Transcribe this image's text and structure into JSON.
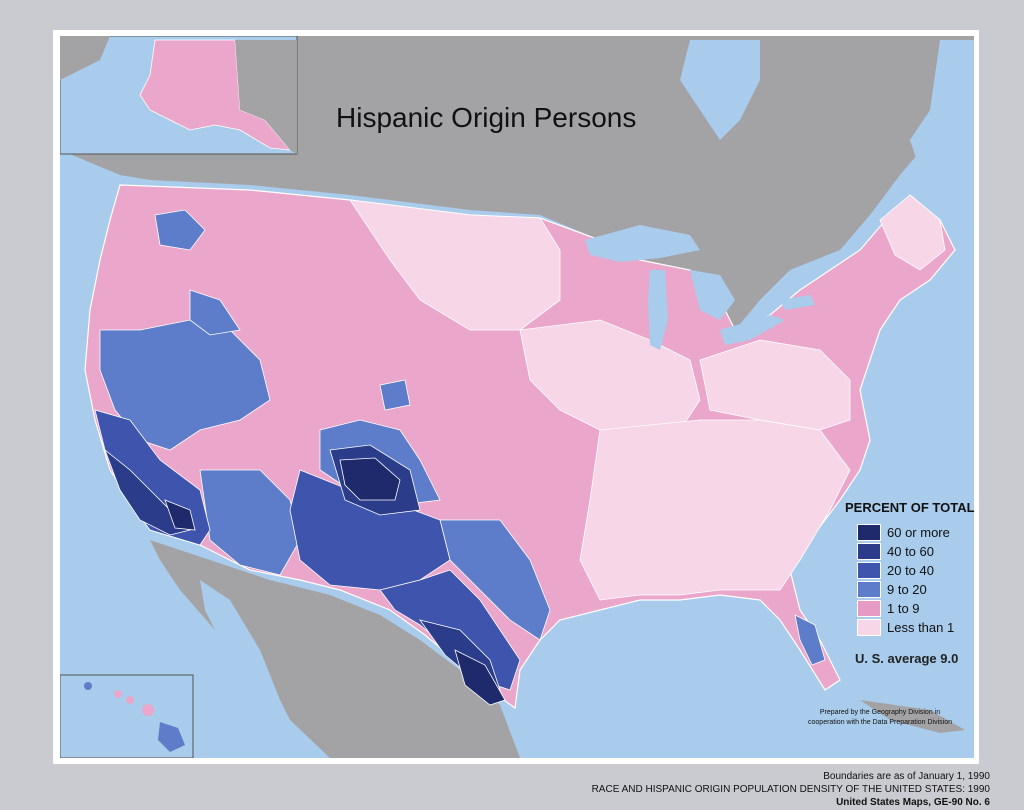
{
  "title": "Hispanic Origin Persons",
  "legend": {
    "title": "PERCENT OF TOTAL",
    "items": [
      {
        "label": "60 or more",
        "color": "#1e2a6b"
      },
      {
        "label": "40 to 60",
        "color": "#2a3c8a"
      },
      {
        "label": "20 to 40",
        "color": "#3f55ad"
      },
      {
        "label": "9 to 20",
        "color": "#5d7cc9"
      },
      {
        "label": "1 to 9",
        "color": "#e79bc4"
      },
      {
        "label": "Less than 1",
        "color": "#f7d6e8"
      }
    ]
  },
  "us_average": "U. S. average 9.0",
  "credit": {
    "line1": "Prepared by the Geography Division in",
    "line2": "cooperation with the Data Preparation Division"
  },
  "footer": {
    "line1": "Boundaries are as of January 1, 1990",
    "line2": "RACE AND HISPANIC ORIGIN POPULATION DENSITY OF THE UNITED STATES: 1990",
    "line3": "United States Maps, GE-90 No. 6"
  },
  "colors": {
    "water": "#a9ccec",
    "land_foreign": "#a3a3a6"
  }
}
